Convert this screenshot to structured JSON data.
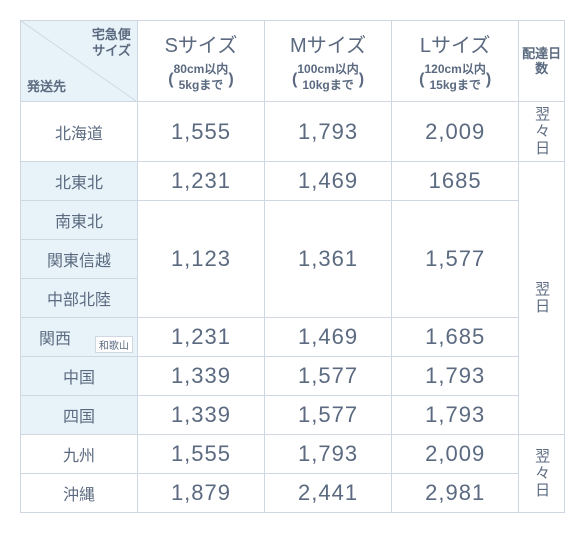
{
  "colors": {
    "border": "#cfd8e2",
    "header_bg": "#e8f3f9",
    "text": "#5b6a80",
    "white": "#ffffff"
  },
  "header": {
    "diag_top": "宅急便\nサイズ",
    "diag_bottom": "発送先",
    "sizes": [
      {
        "title": "Sサイズ",
        "sub": "80cm以内\n5kgまで"
      },
      {
        "title": "Mサイズ",
        "sub": "100cm以内\n10kgまで"
      },
      {
        "title": "Lサイズ",
        "sub": "120cm以内\n15kgまで"
      }
    ],
    "days_label": "配達日数"
  },
  "rows": [
    {
      "dest": "北海道",
      "s": "1,555",
      "m": "1,793",
      "l": "2,009"
    },
    {
      "dest": "北東北",
      "s": "1,231",
      "m": "1,469",
      "l": "1685"
    },
    {
      "dest": "南東北"
    },
    {
      "dest": "関東信越",
      "s": "1,123",
      "m": "1,361",
      "l": "1,577"
    },
    {
      "dest": "中部北陸"
    },
    {
      "dest": "関西",
      "note": "和歌山",
      "s": "1,231",
      "m": "1,469",
      "l": "1,685"
    },
    {
      "dest": "中国",
      "s": "1,339",
      "m": "1,577",
      "l": "1,793"
    },
    {
      "dest": "四国",
      "s": "1,339",
      "m": "1,577",
      "l": "1,793"
    },
    {
      "dest": "九州",
      "s": "1,555",
      "m": "1,793",
      "l": "2,009"
    },
    {
      "dest": "沖縄",
      "s": "1,879",
      "m": "2,441",
      "l": "2,981"
    }
  ],
  "days_groups": [
    {
      "label": "翌々日",
      "span": 1
    },
    {
      "label": "翌日",
      "span": 7
    },
    {
      "label": "翌々日",
      "span": 2
    }
  ]
}
